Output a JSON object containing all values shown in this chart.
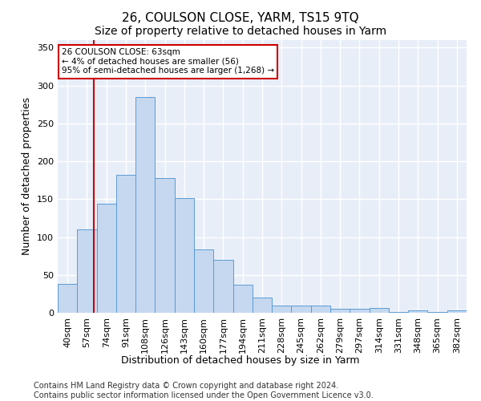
{
  "title": "26, COULSON CLOSE, YARM, TS15 9TQ",
  "subtitle": "Size of property relative to detached houses in Yarm",
  "xlabel": "Distribution of detached houses by size in Yarm",
  "ylabel": "Number of detached properties",
  "categories": [
    "40sqm",
    "57sqm",
    "74sqm",
    "91sqm",
    "108sqm",
    "126sqm",
    "143sqm",
    "160sqm",
    "177sqm",
    "194sqm",
    "211sqm",
    "228sqm",
    "245sqm",
    "262sqm",
    "279sqm",
    "297sqm",
    "314sqm",
    "331sqm",
    "348sqm",
    "365sqm",
    "382sqm"
  ],
  "values": [
    38,
    110,
    144,
    182,
    285,
    178,
    151,
    84,
    70,
    37,
    20,
    10,
    10,
    10,
    5,
    5,
    6,
    1,
    3,
    1,
    3
  ],
  "bar_color": "#c5d8f0",
  "bar_edge_color": "#5b9bd5",
  "annotation_text": "26 COULSON CLOSE: 63sqm\n← 4% of detached houses are smaller (56)\n95% of semi-detached houses are larger (1,268) →",
  "annotation_box_color": "#ffffff",
  "annotation_box_edge_color": "#cc0000",
  "ylim": [
    0,
    360
  ],
  "yticks": [
    0,
    50,
    100,
    150,
    200,
    250,
    300,
    350
  ],
  "background_color": "#e8eef8",
  "footer_text": "Contains HM Land Registry data © Crown copyright and database right 2024.\nContains public sector information licensed under the Open Government Licence v3.0.",
  "title_fontsize": 11,
  "subtitle_fontsize": 10,
  "xlabel_fontsize": 9,
  "ylabel_fontsize": 9,
  "tick_fontsize": 8,
  "footer_fontsize": 7
}
